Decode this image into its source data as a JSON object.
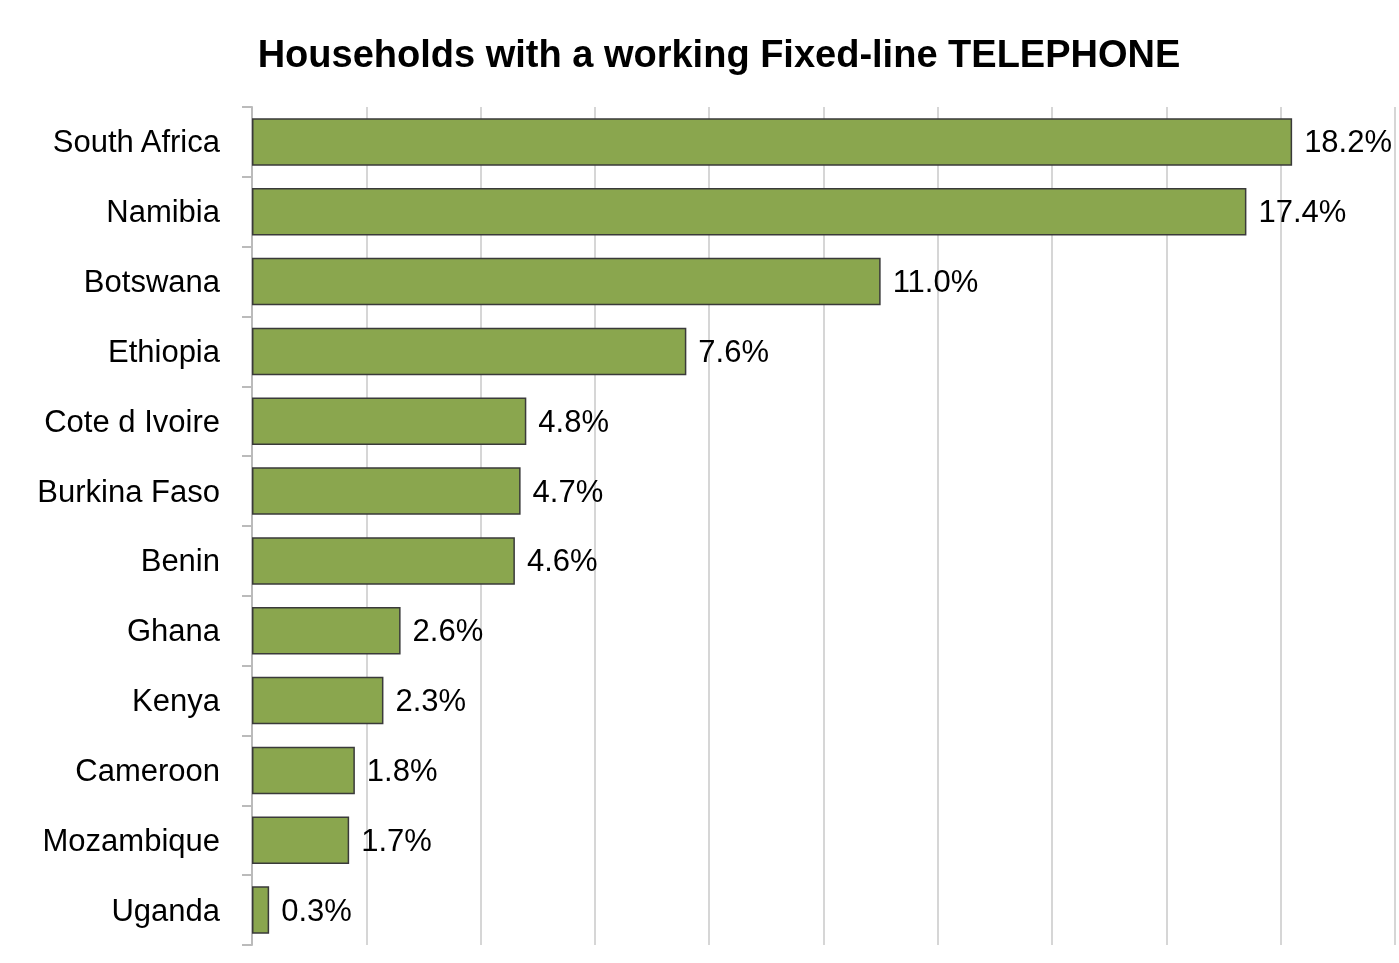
{
  "chart_data": {
    "type": "bar",
    "orientation": "horizontal",
    "title": "Households with a working Fixed-line TELEPHONE",
    "categories": [
      "South Africa",
      "Namibia",
      "Botswana",
      "Ethiopia",
      "Cote d Ivoire",
      "Burkina Faso",
      "Benin",
      "Ghana",
      "Kenya",
      "Cameroon",
      "Mozambique",
      "Uganda"
    ],
    "values": [
      18.2,
      17.4,
      11.0,
      7.6,
      4.8,
      4.7,
      4.6,
      2.6,
      2.3,
      1.8,
      1.7,
      0.3
    ],
    "value_labels": [
      "18.2%",
      "17.4%",
      "11.0%",
      "7.6%",
      "4.8%",
      "4.7%",
      "4.6%",
      "2.6%",
      "2.3%",
      "1.8%",
      "1.7%",
      "0.3%"
    ],
    "color": "#8aa64e",
    "xlim": [
      0,
      20
    ],
    "xticks": [
      {
        "value": 0,
        "label": null
      },
      {
        "value": 2,
        "label": null
      },
      {
        "value": 4,
        "label": null
      },
      {
        "value": 6,
        "label": null
      },
      {
        "value": 8,
        "label": null
      },
      {
        "value": 10,
        "label": null
      },
      {
        "value": 12,
        "label": null
      },
      {
        "value": 14,
        "label": null
      },
      {
        "value": 16,
        "label": null
      },
      {
        "value": 18,
        "label": null
      },
      {
        "value": 20,
        "label": null
      }
    ],
    "grid": "x",
    "tick_labels": "y"
  }
}
